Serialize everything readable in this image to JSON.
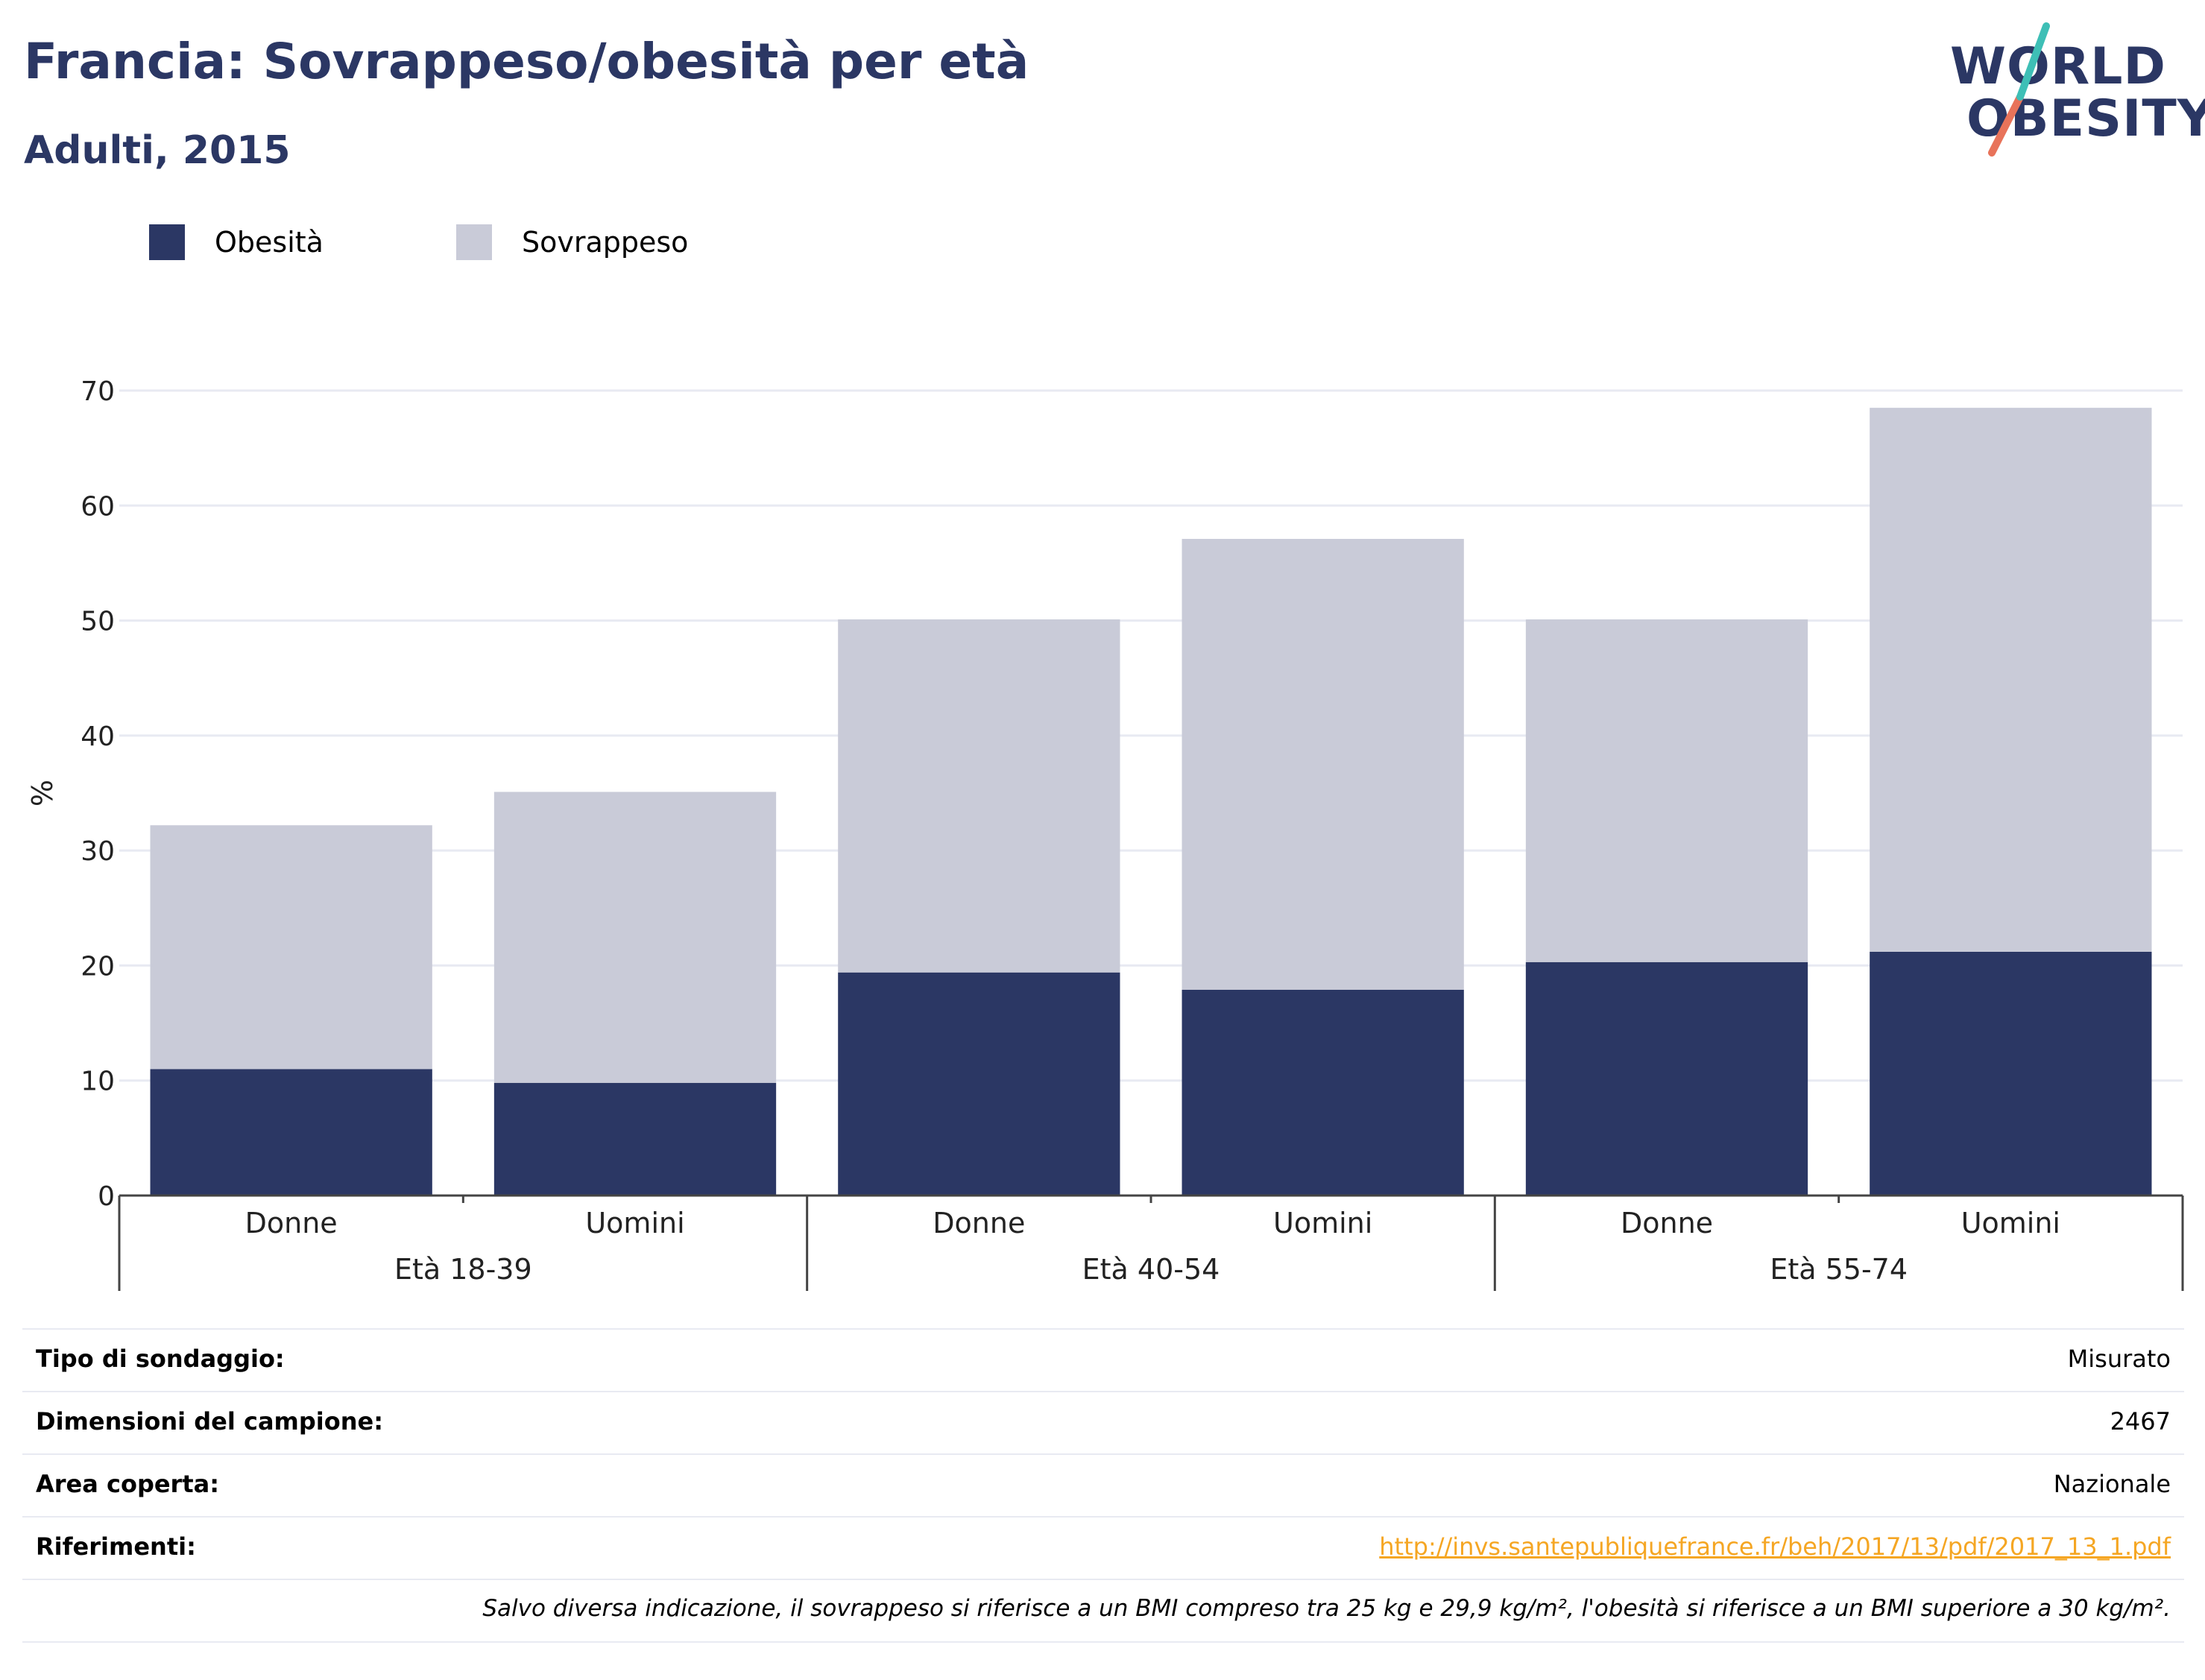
{
  "header": {
    "title": "Francia: Sovrappeso/obesità per età",
    "subtitle": "Adulti, 2015"
  },
  "logo": {
    "line1": "WORLD",
    "line2": "OBESITY",
    "colors": {
      "text": "#2b3764",
      "slash_top": "#3ebfb6",
      "slash_bottom": "#e8735a"
    }
  },
  "colors": {
    "obesity": "#2b3764",
    "overweight": "#c9cbd8",
    "grid": "#e8eaf2",
    "axis": "#444444",
    "link": "#f5a623"
  },
  "chart_data": {
    "type": "bar",
    "stacked": true,
    "ylabel": "%",
    "xlabel": "",
    "ylim": [
      0,
      70
    ],
    "yticks": [
      0,
      10,
      20,
      30,
      40,
      50,
      60,
      70
    ],
    "grid": true,
    "legend_position": "top-left",
    "groups": [
      "Età 18-39",
      "Età 40-54",
      "Età 55-74"
    ],
    "categories": [
      "Donne",
      "Uomini",
      "Donne",
      "Uomini",
      "Donne",
      "Uomini"
    ],
    "category_group": [
      0,
      0,
      1,
      1,
      2,
      2
    ],
    "series": [
      {
        "name": "Obesità",
        "values": [
          11.0,
          9.8,
          19.4,
          17.9,
          20.3,
          21.2
        ]
      },
      {
        "name": "Sovrappeso",
        "values": [
          21.2,
          25.3,
          30.7,
          39.2,
          29.8,
          47.3
        ]
      }
    ],
    "totals": [
      32.2,
      35.1,
      50.1,
      57.1,
      50.1,
      68.5
    ]
  },
  "info": {
    "rows": [
      {
        "key": "Tipo di sondaggio:",
        "value": "Misurato"
      },
      {
        "key": "Dimensioni del campione:",
        "value": "2467"
      },
      {
        "key": "Area coperta:",
        "value": "Nazionale"
      },
      {
        "key": "Riferimenti:",
        "value": "http://invs.santepubliquefrance.fr/beh/2017/13/pdf/2017_13_1.pdf"
      }
    ],
    "note": "Salvo diversa indicazione, il sovrappeso si riferisce a un BMI compreso tra 25 kg e 29,9 kg/m², l'obesità si riferisce a un BMI superiore a 30 kg/m²."
  }
}
